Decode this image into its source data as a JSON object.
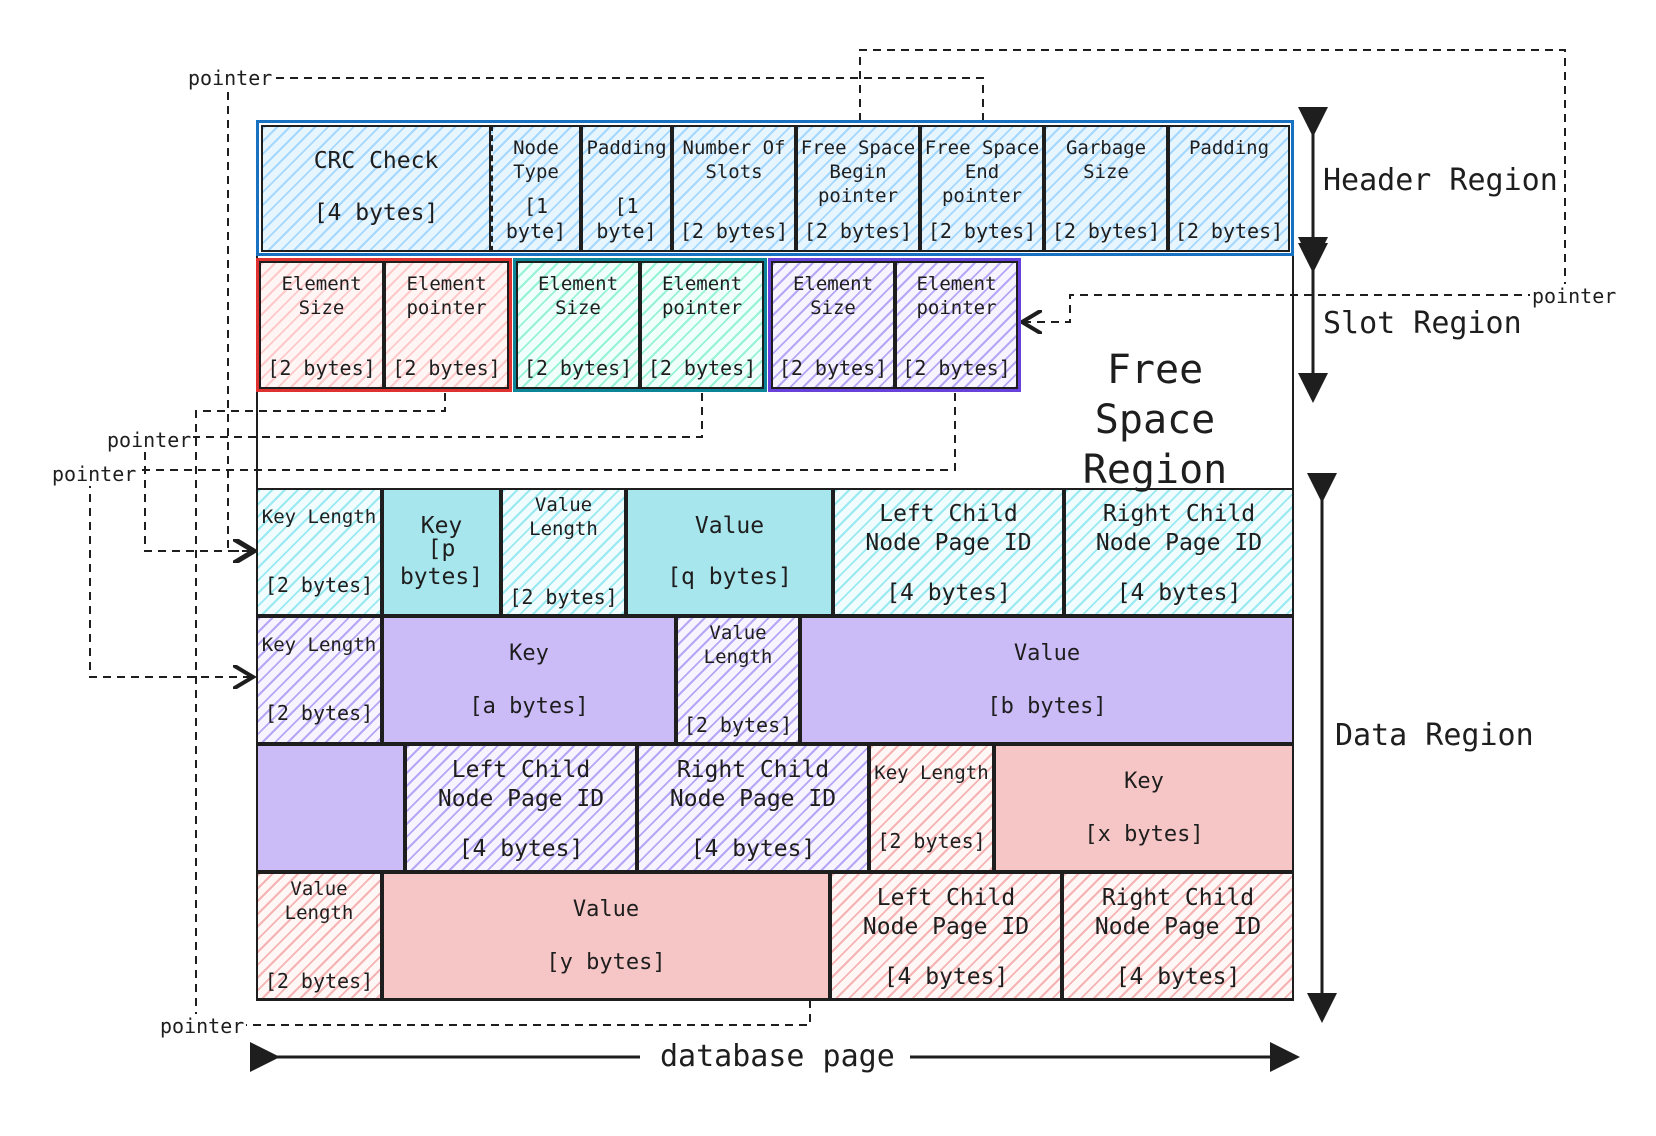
{
  "header": {
    "crc": {
      "name": "CRC Check",
      "size": "[4 bytes]"
    },
    "node_type": {
      "name": "Node Type",
      "size": "[1 byte]"
    },
    "padding1": {
      "name": "Padding",
      "size": "[1 byte]"
    },
    "num_slots": {
      "name": "Number Of Slots",
      "size": "[2 bytes]"
    },
    "fs_begin": {
      "name": "Free Space Begin pointer",
      "size": "[2 bytes]"
    },
    "fs_end": {
      "name": "Free Space End pointer",
      "size": "[2 bytes]"
    },
    "garbage": {
      "name": "Garbage Size",
      "size": "[2 bytes]"
    },
    "padding2": {
      "name": "Padding",
      "size": "[2 bytes]"
    }
  },
  "slot": {
    "element_size": "Element Size",
    "element_pointer": "Element pointer",
    "size": "[2 bytes]"
  },
  "data": {
    "key_length": "Key Length",
    "key": "Key",
    "value_length": "Value Length",
    "value": "Value",
    "left_child": "Left Child Node Page ID",
    "right_child": "Right Child Node Page ID",
    "two_bytes": "[2 bytes]",
    "four_bytes": "[4 bytes]",
    "p_bytes": "[p bytes]",
    "q_bytes": "[q bytes]",
    "a_bytes": "[a bytes]",
    "b_bytes": "[b bytes]",
    "x_bytes": "[x bytes]",
    "y_bytes": "[y bytes]"
  },
  "labels": {
    "pointer": "pointer",
    "header_region": "Header Region",
    "slot_region": "Slot Region",
    "free_space_region": "Free Space Region",
    "data_region": "Data Region",
    "database_page": "database page"
  },
  "colors": {
    "header_border": "#1971c2",
    "slot1_border": "#e03131",
    "slot2_border": "#0c8599",
    "slot3_border": "#6741d9",
    "cyan": "#a8e6ee",
    "purple": "#cbbcf8",
    "pink": "#f6c6c6"
  }
}
